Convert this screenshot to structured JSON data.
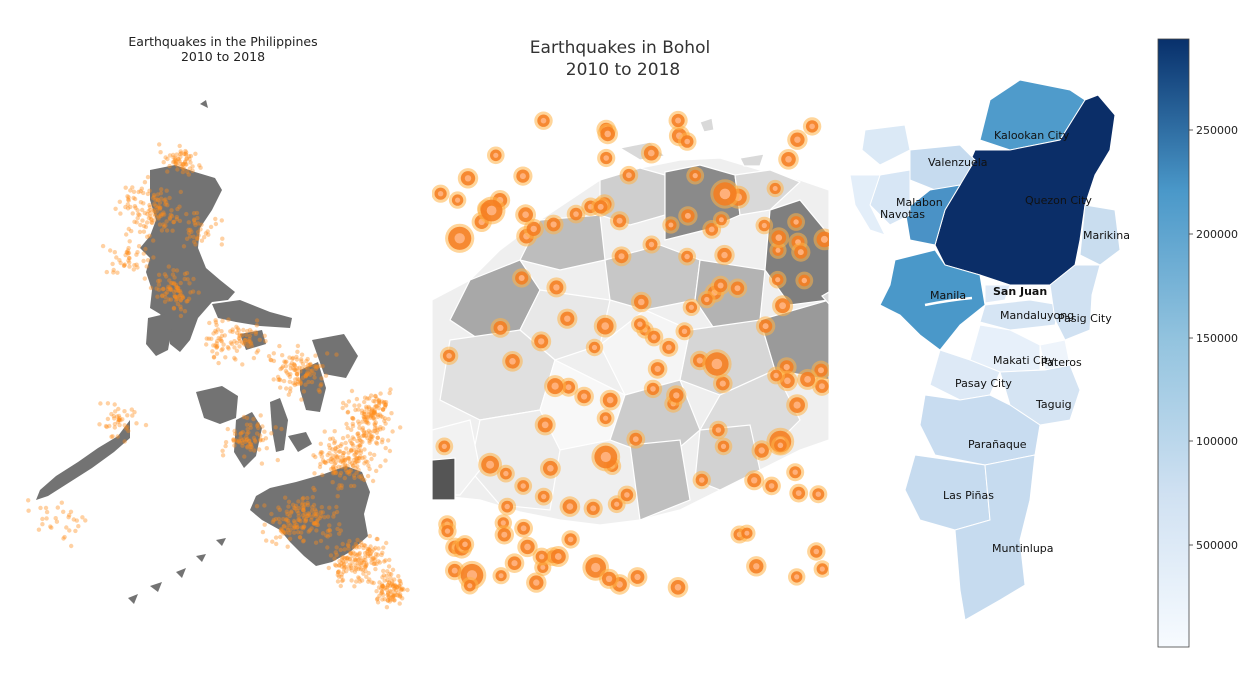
{
  "maps": {
    "philippines": {
      "title_line1": "Earthquakes in the Philippines",
      "title_line2": "2010 to 2018",
      "land_color": "#737373",
      "marker_color": "#ff8c1a"
    },
    "bohol": {
      "title_line1": "Earthquakes in Bohol",
      "title_line2": "2010 to 2018",
      "marker_color": "#f47b20",
      "marker_halo_color": "#ffb347"
    },
    "metro_manila": {
      "labels": [
        {
          "id": "kalookan",
          "text": "Kalookan City"
        },
        {
          "id": "valenzuela",
          "text": "Valenzuela"
        },
        {
          "id": "malabon",
          "text": "Malabon"
        },
        {
          "id": "navotas",
          "text": "Navotas"
        },
        {
          "id": "quezon",
          "text": "Quezon City"
        },
        {
          "id": "marikina",
          "text": "Marikina"
        },
        {
          "id": "manila",
          "text": "Manila"
        },
        {
          "id": "sanjuan",
          "text": "San Juan"
        },
        {
          "id": "mandaluyong",
          "text": "Mandaluyong"
        },
        {
          "id": "pasig",
          "text": "Pasig City"
        },
        {
          "id": "makati",
          "text": "Makati City"
        },
        {
          "id": "pateros",
          "text": "Pateros"
        },
        {
          "id": "pasay",
          "text": "Pasay City"
        },
        {
          "id": "taguig",
          "text": "Taguig"
        },
        {
          "id": "paranaque",
          "text": "Parañaque"
        },
        {
          "id": "laspinas",
          "text": "Las Piñas"
        },
        {
          "id": "muntinlupa",
          "text": "Muntinlupa"
        }
      ],
      "colorbar": {
        "colormap": "Blues",
        "ticks": [
          "250000",
          "200000",
          "150000",
          "100000",
          "500000"
        ]
      }
    }
  }
}
